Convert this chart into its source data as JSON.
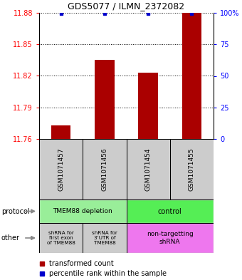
{
  "title": "GDS5077 / ILMN_2372082",
  "samples": [
    "GSM1071457",
    "GSM1071456",
    "GSM1071454",
    "GSM1071455"
  ],
  "red_values": [
    11.773,
    11.835,
    11.823,
    11.88
  ],
  "blue_values": [
    99.5,
    99.5,
    99.5,
    99.5
  ],
  "ymin": 11.76,
  "ymax": 11.88,
  "yticks_left": [
    11.76,
    11.79,
    11.82,
    11.85,
    11.88
  ],
  "yticks_right": [
    0,
    25,
    50,
    75,
    100
  ],
  "bar_color": "#AA0000",
  "dot_color": "#0000CC",
  "bar_width": 0.45,
  "protocol_green_light": "#99EE99",
  "protocol_green_bright": "#55EE55",
  "other_pink": "#EE77EE",
  "other_gray": "#CCCCCC",
  "sample_box_gray": "#CCCCCC",
  "label_fontsize": 7,
  "title_fontsize": 9
}
